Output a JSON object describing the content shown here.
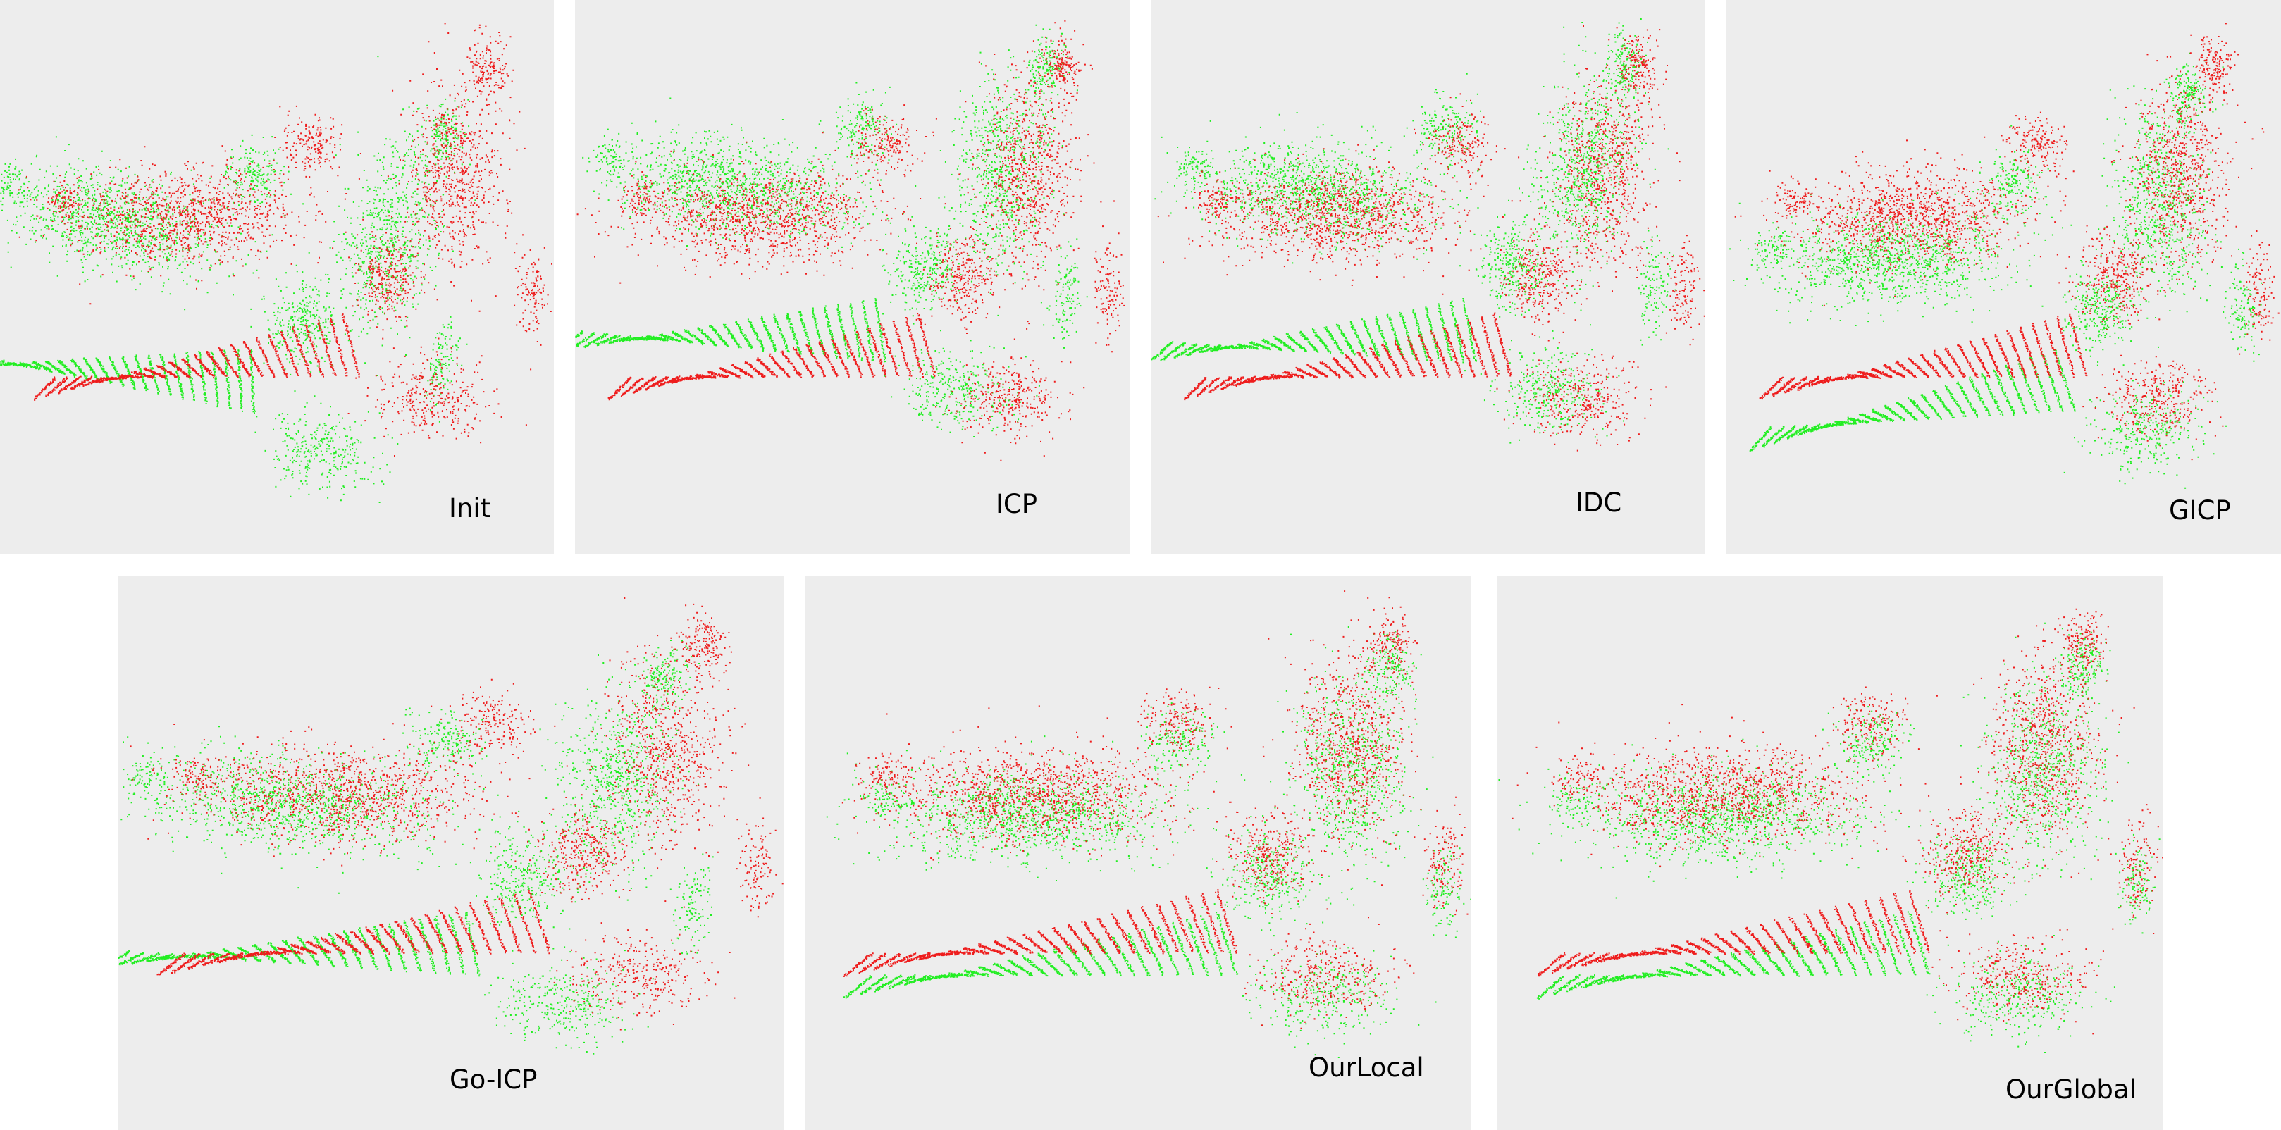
{
  "colors": {
    "background": "#ffffff",
    "panel": "#ededed",
    "target_cloud": "#ee1c1c",
    "source_cloud": "#22ee22"
  },
  "panels": [
    {
      "label": "Init"
    },
    {
      "label": "ICP"
    },
    {
      "label": "IDC"
    },
    {
      "label": "GICP"
    },
    {
      "label": "Go-ICP"
    },
    {
      "label": "OurLocal"
    },
    {
      "label": "OurGlobal"
    }
  ]
}
